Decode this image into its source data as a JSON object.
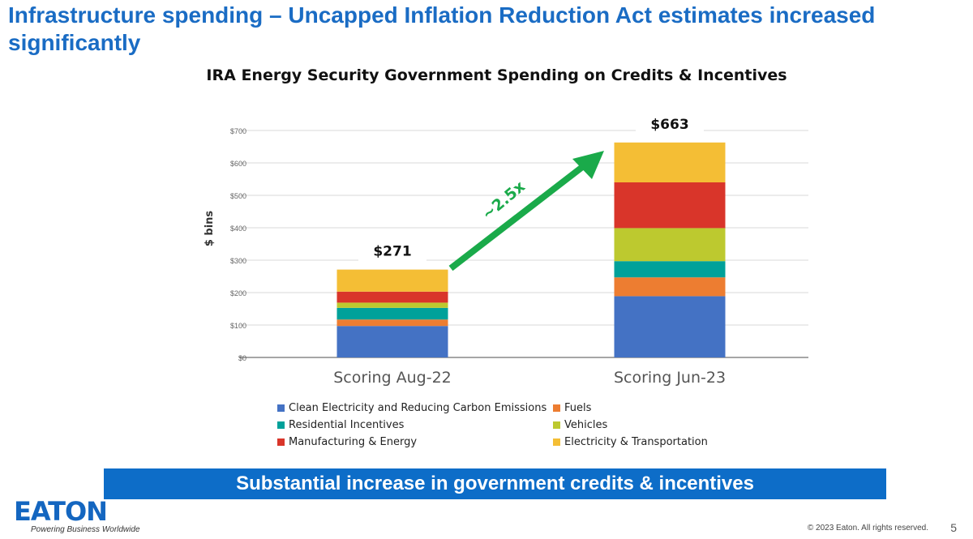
{
  "slide": {
    "title": "Infrastructure spending – Uncapped Inflation Reduction Act estimates increased significantly",
    "banner": "Substantial increase in government credits & incentives",
    "logo_text": "EATON",
    "tagline": "Powering Business Worldwide",
    "copyright": "© 2023 Eaton. All rights reserved.",
    "page_number": "5"
  },
  "chart_data": {
    "type": "bar",
    "stacked": true,
    "title": "IRA Energy Security Government Spending on Credits & Incentives",
    "xlabel": "",
    "ylabel": "$ bins",
    "ylim": [
      0,
      700
    ],
    "yticks": [
      0,
      100,
      200,
      300,
      400,
      500,
      600,
      700
    ],
    "ytick_labels": [
      "$0",
      "$100",
      "$200",
      "$300",
      "$400",
      "$500",
      "$600",
      "$700"
    ],
    "grid": true,
    "categories": [
      "Scoring Aug-22",
      "Scoring Jun-23"
    ],
    "totals": [
      271,
      663
    ],
    "total_labels": [
      "$271",
      "$663"
    ],
    "series": [
      {
        "name": "Clean Electricity and Reducing Carbon Emissions",
        "color": "#4472c4",
        "values": [
          97,
          189
        ]
      },
      {
        "name": "Fuels",
        "color": "#ed7d31",
        "values": [
          20,
          58
        ]
      },
      {
        "name": "Residential Incentives",
        "color": "#00a19a",
        "values": [
          36,
          50
        ]
      },
      {
        "name": "Vehicles",
        "color": "#bdc92f",
        "values": [
          16,
          102
        ]
      },
      {
        "name": "Manufacturing & Energy",
        "color": "#d9352a",
        "values": [
          34,
          141
        ]
      },
      {
        "name": "Electricity & Transportation",
        "color": "#f4be35",
        "values": [
          68,
          123
        ]
      }
    ],
    "legend_order": [
      0,
      1,
      2,
      3,
      4,
      5
    ],
    "legend_position": "bottom",
    "annotation": {
      "text": "~2.5x",
      "color": "#1aaa4a"
    }
  }
}
